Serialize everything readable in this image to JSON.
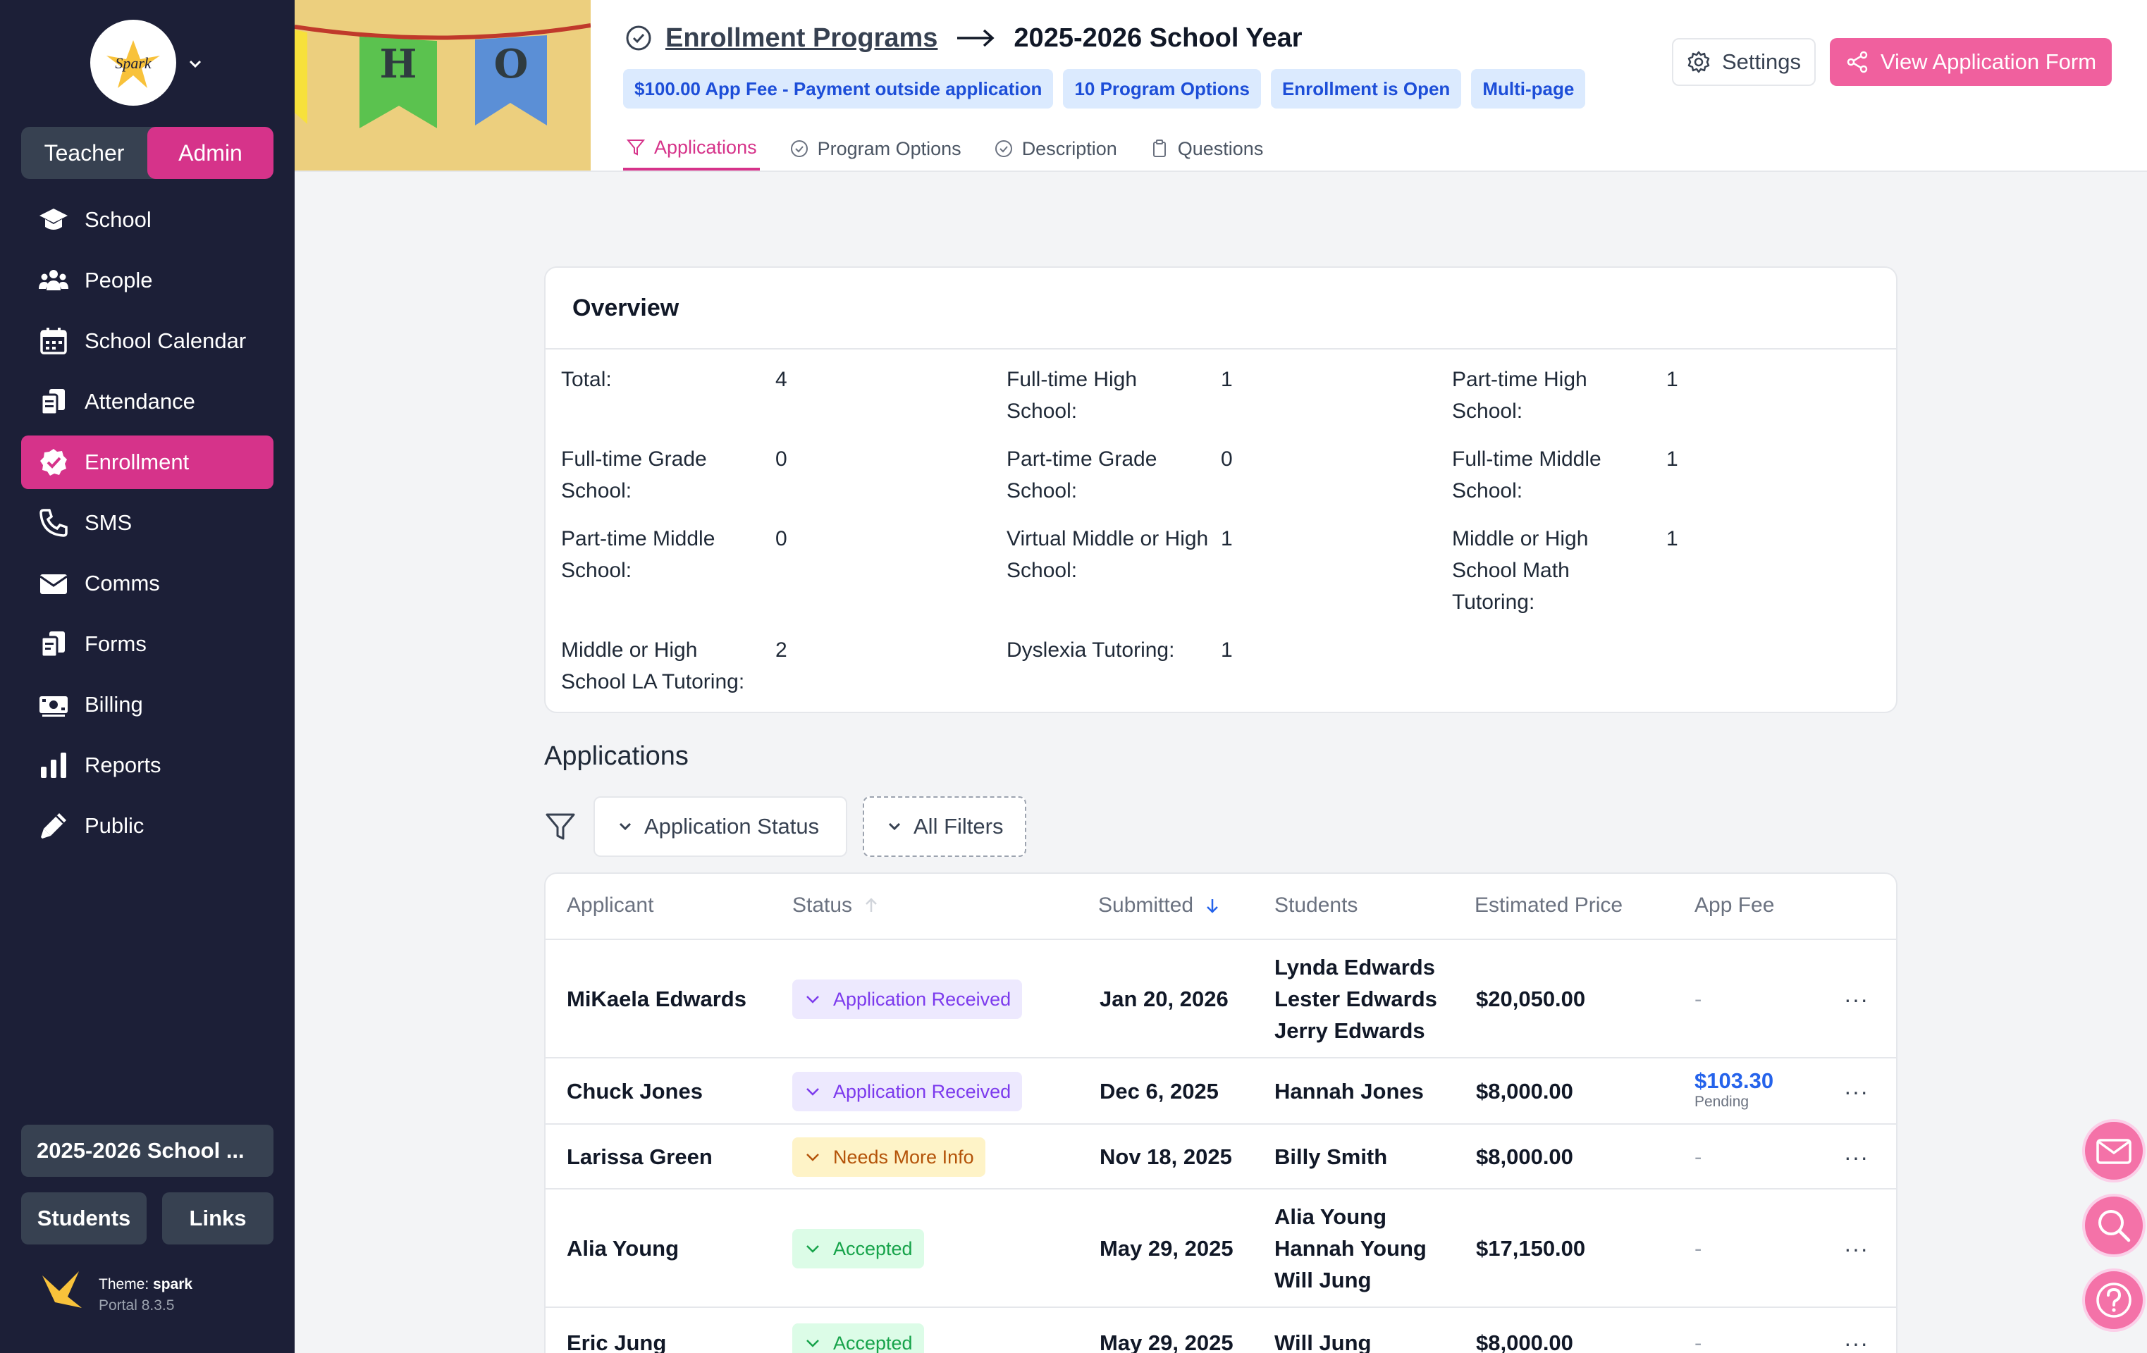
{
  "sidebar": {
    "roles": {
      "teacher": "Teacher",
      "admin": "Admin"
    },
    "items": [
      {
        "label": "School",
        "icon": "graduation-cap-icon"
      },
      {
        "label": "People",
        "icon": "people-icon"
      },
      {
        "label": "School Calendar",
        "icon": "calendar-icon"
      },
      {
        "label": "Attendance",
        "icon": "clipboard-icon"
      },
      {
        "label": "Enrollment",
        "icon": "check-badge-icon",
        "active": true
      },
      {
        "label": "SMS",
        "icon": "phone-icon"
      },
      {
        "label": "Comms",
        "icon": "envelope-icon"
      },
      {
        "label": "Forms",
        "icon": "forms-icon"
      },
      {
        "label": "Billing",
        "icon": "money-icon"
      },
      {
        "label": "Reports",
        "icon": "bar-chart-icon"
      },
      {
        "label": "Public",
        "icon": "pen-icon"
      }
    ],
    "year_button": "2025-2026 School ...",
    "students_button": "Students",
    "links_button": "Links",
    "theme_prefix": "Theme:",
    "theme_name": "spark",
    "portal_version": "Portal 8.3.5",
    "logo_text": "Spark"
  },
  "banner": {
    "letter1": "H",
    "letter2": "O"
  },
  "header": {
    "title_link": "Enrollment Programs",
    "title_current": "2025-2026 School Year",
    "badges": [
      "$100.00 App Fee - Payment outside application",
      "10 Program Options",
      "Enrollment is Open",
      "Multi-page"
    ],
    "tabs": [
      "Applications",
      "Program Options",
      "Description",
      "Questions"
    ],
    "settings_label": "Settings",
    "view_form_label": "View Application Form"
  },
  "overview": {
    "title": "Overview",
    "stats": [
      {
        "label": "Total:",
        "value": "4"
      },
      {
        "label": "Full-time High School:",
        "value": "1"
      },
      {
        "label": "Part-time High School:",
        "value": "1"
      },
      {
        "label": "Full-time Grade School:",
        "value": "0"
      },
      {
        "label": "Part-time Grade School:",
        "value": "0"
      },
      {
        "label": "Full-time Middle School:",
        "value": "1"
      },
      {
        "label": "Part-time Middle School:",
        "value": "0"
      },
      {
        "label": "Virtual Middle or High School:",
        "value": "1"
      },
      {
        "label": "Middle or High School Math Tutoring:",
        "value": "1"
      },
      {
        "label": "Middle or High School LA Tutoring:",
        "value": "2"
      },
      {
        "label": "Dyslexia Tutoring:",
        "value": "1"
      }
    ]
  },
  "applications": {
    "title": "Applications",
    "filter_status": "Application Status",
    "filter_all": "All Filters",
    "columns": [
      "Applicant",
      "Status",
      "Submitted",
      "Students",
      "Estimated Price",
      "App Fee"
    ],
    "rows": [
      {
        "applicant": "MiKaela Edwards",
        "status": "Application Received",
        "status_type": "received",
        "submitted": "Jan 20, 2026",
        "students": [
          "Lynda Edwards",
          "Lester Edwards",
          "Jerry Edwards"
        ],
        "price": "$20,050.00",
        "fee": "-",
        "fee_sub": ""
      },
      {
        "applicant": "Chuck Jones",
        "status": "Application Received",
        "status_type": "received",
        "submitted": "Dec 6, 2025",
        "students": [
          "Hannah Jones"
        ],
        "price": "$8,000.00",
        "fee": "$103.30",
        "fee_sub": "Pending"
      },
      {
        "applicant": "Larissa Green",
        "status": "Needs More Info",
        "status_type": "needs",
        "submitted": "Nov 18, 2025",
        "students": [
          "Billy Smith"
        ],
        "price": "$8,000.00",
        "fee": "-",
        "fee_sub": ""
      },
      {
        "applicant": "Alia Young",
        "status": "Accepted",
        "status_type": "accepted",
        "submitted": "May 29, 2025",
        "students": [
          "Alia Young",
          "Hannah Young",
          "Will Jung"
        ],
        "price": "$17,150.00",
        "fee": "-",
        "fee_sub": ""
      },
      {
        "applicant": "Eric Jung",
        "status": "Accepted",
        "status_type": "accepted",
        "submitted": "May 29, 2025",
        "students": [
          "Will Jung"
        ],
        "price": "$8,000.00",
        "fee": "-",
        "fee_sub": ""
      }
    ],
    "more_label": "···"
  },
  "colors": {
    "accent": "#d6338a",
    "sidebar": "#1c1f37",
    "badge": "#dbeafe"
  }
}
